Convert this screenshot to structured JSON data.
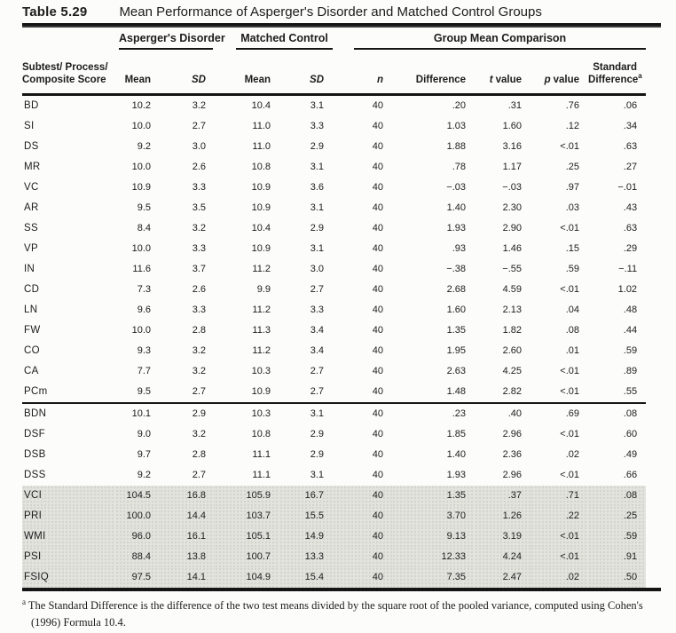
{
  "title": {
    "number": "Table 5.29",
    "text": "Mean Performance of Asperger's Disorder and Matched Control Groups"
  },
  "headers": {
    "spanner_asperger": "Asperger's Disorder",
    "spanner_matched": "Matched Control",
    "spanner_comparison": "Group Mean Comparison",
    "stub_line1": "Subtest/ Process/",
    "stub_line2": "Composite Score",
    "asp_mean": "Mean",
    "asp_sd": "SD",
    "mc_mean": "Mean",
    "mc_sd": "SD",
    "n": "n",
    "difference": "Difference",
    "t_italic": "t",
    "t_rest": "value",
    "p_italic": "p",
    "p_rest": "value",
    "std_line1": "Standard",
    "std_line2": "Difference",
    "std_sup": "a"
  },
  "table": {
    "sections": [
      {
        "divider_before": false,
        "shaded": false,
        "rows": [
          [
            "BD",
            "10.2",
            "3.2",
            "10.4",
            "3.1",
            "40",
            ".20",
            ".31",
            ".76",
            ".06"
          ],
          [
            "SI",
            "10.0",
            "2.7",
            "11.0",
            "3.3",
            "40",
            "1.03",
            "1.60",
            ".12",
            ".34"
          ],
          [
            "DS",
            "9.2",
            "3.0",
            "11.0",
            "2.9",
            "40",
            "1.88",
            "3.16",
            "<.01",
            ".63"
          ],
          [
            "MR",
            "10.0",
            "2.6",
            "10.8",
            "3.1",
            "40",
            ".78",
            "1.17",
            ".25",
            ".27"
          ],
          [
            "VC",
            "10.9",
            "3.3",
            "10.9",
            "3.6",
            "40",
            "−.03",
            "−.03",
            ".97",
            "−.01"
          ],
          [
            "AR",
            "9.5",
            "3.5",
            "10.9",
            "3.1",
            "40",
            "1.40",
            "2.30",
            ".03",
            ".43"
          ],
          [
            "SS",
            "8.4",
            "3.2",
            "10.4",
            "2.9",
            "40",
            "1.93",
            "2.90",
            "<.01",
            ".63"
          ],
          [
            "VP",
            "10.0",
            "3.3",
            "10.9",
            "3.1",
            "40",
            ".93",
            "1.46",
            ".15",
            ".29"
          ],
          [
            "IN",
            "11.6",
            "3.7",
            "11.2",
            "3.0",
            "40",
            "−.38",
            "−.55",
            ".59",
            "−.11"
          ],
          [
            "CD",
            "7.3",
            "2.6",
            "9.9",
            "2.7",
            "40",
            "2.68",
            "4.59",
            "<.01",
            "1.02"
          ],
          [
            "LN",
            "9.6",
            "3.3",
            "11.2",
            "3.3",
            "40",
            "1.60",
            "2.13",
            ".04",
            ".48"
          ],
          [
            "FW",
            "10.0",
            "2.8",
            "11.3",
            "3.4",
            "40",
            "1.35",
            "1.82",
            ".08",
            ".44"
          ],
          [
            "CO",
            "9.3",
            "3.2",
            "11.2",
            "3.4",
            "40",
            "1.95",
            "2.60",
            ".01",
            ".59"
          ],
          [
            "CA",
            "7.7",
            "3.2",
            "10.3",
            "2.7",
            "40",
            "2.63",
            "4.25",
            "<.01",
            ".89"
          ],
          [
            "PCm",
            "9.5",
            "2.7",
            "10.9",
            "2.7",
            "40",
            "1.48",
            "2.82",
            "<.01",
            ".55"
          ]
        ]
      },
      {
        "divider_before": true,
        "shaded": false,
        "rows": [
          [
            "BDN",
            "10.1",
            "2.9",
            "10.3",
            "3.1",
            "40",
            ".23",
            ".40",
            ".69",
            ".08"
          ],
          [
            "DSF",
            "9.0",
            "3.2",
            "10.8",
            "2.9",
            "40",
            "1.85",
            "2.96",
            "<.01",
            ".60"
          ],
          [
            "DSB",
            "9.7",
            "2.8",
            "11.1",
            "2.9",
            "40",
            "1.40",
            "2.36",
            ".02",
            ".49"
          ],
          [
            "DSS",
            "9.2",
            "2.7",
            "11.1",
            "3.1",
            "40",
            "1.93",
            "2.96",
            "<.01",
            ".66"
          ]
        ]
      },
      {
        "divider_before": false,
        "shaded": true,
        "rows": [
          [
            "VCI",
            "104.5",
            "16.8",
            "105.9",
            "16.7",
            "40",
            "1.35",
            ".37",
            ".71",
            ".08"
          ],
          [
            "PRI",
            "100.0",
            "14.4",
            "103.7",
            "15.5",
            "40",
            "3.70",
            "1.26",
            ".22",
            ".25"
          ],
          [
            "WMI",
            "96.0",
            "16.1",
            "105.1",
            "14.9",
            "40",
            "9.13",
            "3.19",
            "<.01",
            ".59"
          ],
          [
            "PSI",
            "88.4",
            "13.8",
            "100.7",
            "13.3",
            "40",
            "12.33",
            "4.24",
            "<.01",
            ".91"
          ],
          [
            "FSIQ",
            "97.5",
            "14.1",
            "104.9",
            "15.4",
            "40",
            "7.35",
            "2.47",
            ".02",
            ".50"
          ]
        ]
      }
    ]
  },
  "footnote": {
    "sup": "a",
    "text": " The Standard Difference is the difference of the two test means divided by the square root of the pooled variance, computed using Cohen's (1996) Formula 10.4."
  },
  "colors": {
    "text": "#1c1c1c",
    "rule": "#141414",
    "shaded_bg": "#e3e3de",
    "page_bg": "#fcfcfa"
  }
}
